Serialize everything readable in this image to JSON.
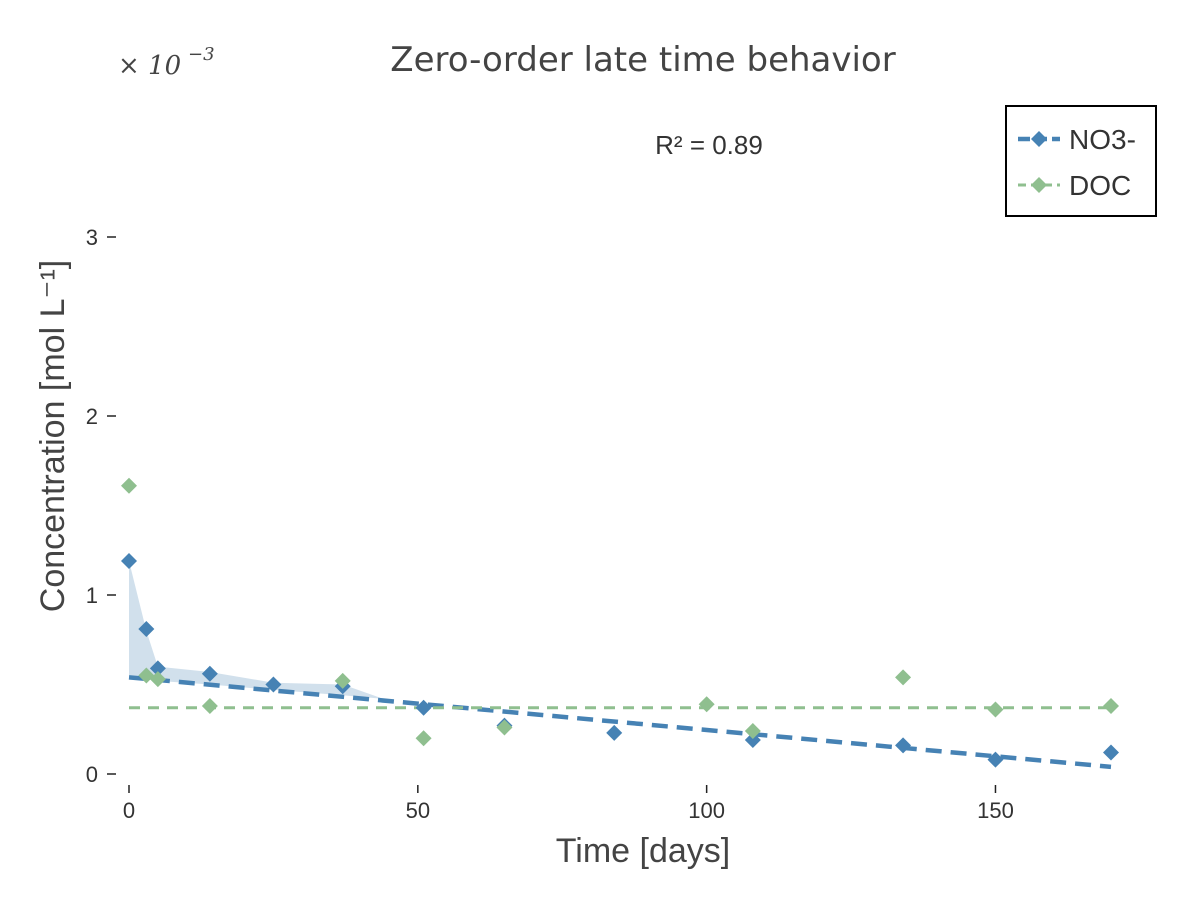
{
  "chart_data": {
    "type": "scatter",
    "title": "Zero-order late time behavior",
    "xlabel": "Time [days]",
    "ylabel": "Concentration [mol L⁻¹]",
    "xlim": [
      0,
      175
    ],
    "ylim": [
      0,
      3.4
    ],
    "y_scale_factor_label": "× 10",
    "y_scale_factor_exp": "−3",
    "xticks": [
      "0",
      "50",
      "100",
      "150"
    ],
    "xtick_values": [
      0,
      50,
      100,
      150
    ],
    "yticks": [
      "0",
      "1",
      "2",
      "3"
    ],
    "ytick_values": [
      0,
      1,
      2,
      3
    ],
    "annotation": "R² = 0.89",
    "grid": false,
    "legend_position": "top-right",
    "series": [
      {
        "name": "NO3-",
        "color": "#4682b4",
        "marker": "diamond",
        "points": [
          {
            "x": 0,
            "y": 1.19
          },
          {
            "x": 3,
            "y": 0.81
          },
          {
            "x": 5,
            "y": 0.59
          },
          {
            "x": 14,
            "y": 0.56
          },
          {
            "x": 25,
            "y": 0.5
          },
          {
            "x": 37,
            "y": 0.49
          },
          {
            "x": 51,
            "y": 0.37
          },
          {
            "x": 65,
            "y": 0.27
          },
          {
            "x": 84,
            "y": 0.23
          },
          {
            "x": 108,
            "y": 0.19
          },
          {
            "x": 134,
            "y": 0.16
          },
          {
            "x": 150,
            "y": 0.08
          },
          {
            "x": 170,
            "y": 0.12
          }
        ],
        "fit_line": {
          "style": "dashed",
          "x": [
            0,
            170
          ],
          "y": [
            0.54,
            0.04
          ]
        },
        "band": {
          "x": [
            0,
            3,
            5,
            14,
            25,
            37,
            44
          ],
          "upper": [
            1.19,
            0.8,
            0.6,
            0.57,
            0.51,
            0.5,
            0.42
          ],
          "lower": [
            0.54,
            0.53,
            0.52,
            0.5,
            0.47,
            0.44,
            0.42
          ]
        }
      },
      {
        "name": "DOC",
        "color": "#8fbf8f",
        "marker": "diamond",
        "points": [
          {
            "x": 0,
            "y": 1.61
          },
          {
            "x": 3,
            "y": 0.55
          },
          {
            "x": 5,
            "y": 0.53
          },
          {
            "x": 14,
            "y": 0.38
          },
          {
            "x": 37,
            "y": 0.52
          },
          {
            "x": 51,
            "y": 0.2
          },
          {
            "x": 65,
            "y": 0.26
          },
          {
            "x": 100,
            "y": 0.39
          },
          {
            "x": 108,
            "y": 0.24
          },
          {
            "x": 134,
            "y": 0.54
          },
          {
            "x": 150,
            "y": 0.36
          },
          {
            "x": 170,
            "y": 0.38
          }
        ],
        "fit_line": {
          "style": "dashed",
          "x": [
            0,
            170
          ],
          "y": [
            0.37,
            0.37
          ]
        }
      }
    ]
  }
}
